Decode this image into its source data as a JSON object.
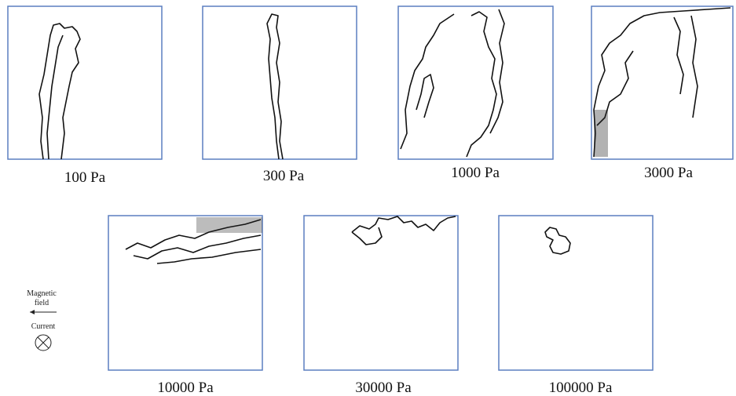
{
  "panels": [
    {
      "label": "100 Pa"
    },
    {
      "label": "300 Pa"
    },
    {
      "label": "1000 Pa"
    },
    {
      "label": "3000 Pa"
    },
    {
      "label": "10000 Pa"
    },
    {
      "label": "30000 Pa"
    },
    {
      "label": "100000 Pa"
    }
  ],
  "legend": {
    "magnetic_field": [
      "Magnetic",
      "field"
    ],
    "current": "Current"
  }
}
